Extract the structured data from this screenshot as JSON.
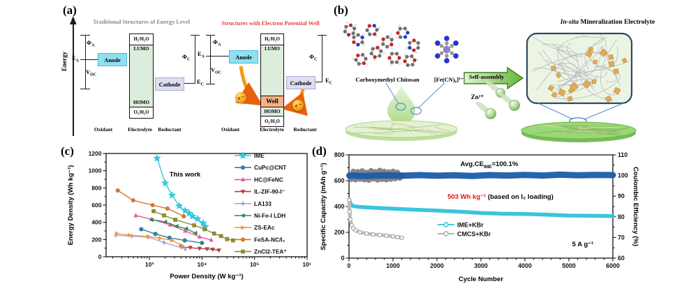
{
  "panel_a": {
    "label": "(a)",
    "energy_axis_label": "Energy",
    "sym": {
      "phi": "Φ",
      "sub_a": "A",
      "e": "E",
      "v": "V",
      "sub_oc": "OC",
      "sub_c": "C"
    },
    "left": {
      "title": "Traditional Structures of Energy Level",
      "anode": "Anode",
      "cathode": "Cathode",
      "h2": "H₂/H₂O",
      "lumo": "LUMO",
      "homo": "HOMO",
      "o2": "O₂/H₂O",
      "oxidant": "Oxidant",
      "electrolyte": "Electrolyte",
      "reductant": "Reductant"
    },
    "right": {
      "title": "Structures with  Electron Potential Well",
      "anode": "Anode",
      "cathode": "Cathode",
      "h2": "H₂/H₂O",
      "lumo": "LUMO",
      "homo": "HOMO",
      "o2": "O₂/H₂O",
      "well": "Well",
      "electron": "e⁻",
      "oxidant": "Oxidant",
      "electrolyte": "Electrolyte",
      "reductant": "Reductant"
    }
  },
  "panel_b": {
    "label": "(b)",
    "cmcs_label": "Carboxymethyl Chitosan",
    "fe_label": "[Fe(CN)₆]³⁻",
    "assembly_label": "Self-assembly",
    "zn_label": "Zn²⁺",
    "title_italic": "In-situ",
    "title_rest": " Mineralization Electrolyte"
  },
  "chart_data": [
    {
      "id": "c",
      "type": "scatter",
      "panel_label": "(c)",
      "xlabel": "Power Density (W kg⁻¹)",
      "ylabel": "Energy Density (Wh kg⁻¹)",
      "x_scale": "log",
      "xlim": [
        150,
        1000000
      ],
      "ylim": [
        0,
        1200
      ],
      "x_ticks": [
        {
          "v": 1000,
          "label": "10³"
        },
        {
          "v": 10000,
          "label": "10⁴"
        },
        {
          "v": 100000,
          "label": "10⁵"
        },
        {
          "v": 1000000,
          "label": "10⁶"
        }
      ],
      "y_ticks": [
        0,
        200,
        400,
        600,
        800,
        1000,
        1200
      ],
      "annotation": "This work",
      "legend_position": "right-inside",
      "series": [
        {
          "name": "IME",
          "marker": "star",
          "color": "#35C8DC",
          "points": [
            [
              1400,
              1145
            ],
            [
              2000,
              855
            ],
            [
              2700,
              715
            ],
            [
              3700,
              590
            ],
            [
              4800,
              535
            ],
            [
              5700,
              505
            ],
            [
              6600,
              470
            ],
            [
              8200,
              440
            ],
            [
              10500,
              390
            ],
            [
              11500,
              350
            ]
          ]
        },
        {
          "name": "CuPc@CNT",
          "marker": "circle",
          "color": "#2E7F9C",
          "points": [
            [
              700,
              320
            ],
            [
              1300,
              265
            ],
            [
              2400,
              220
            ],
            [
              4700,
              190
            ],
            [
              10000,
              160
            ]
          ]
        },
        {
          "name": "HC@FeNC",
          "marker": "triangle-up",
          "color": "#E75A9B",
          "points": [
            [
              550,
              480
            ],
            [
              1100,
              435
            ],
            [
              2500,
              370
            ],
            [
              4800,
              300
            ],
            [
              9000,
              230
            ],
            [
              15000,
              195
            ]
          ]
        },
        {
          "name": "IL-ZIF-90-I⁻",
          "marker": "triangle-down",
          "color": "#B04040",
          "points": [
            [
              4000,
              115
            ],
            [
              6000,
              105
            ],
            [
              9000,
              95
            ],
            [
              12500,
              90
            ],
            [
              16000,
              85
            ],
            [
              21000,
              75
            ]
          ]
        },
        {
          "name": "LA133",
          "marker": "diamond",
          "color": "#A8A6D6",
          "points": [
            [
              230,
              250
            ],
            [
              460,
              240
            ],
            [
              950,
              228
            ],
            [
              1900,
              165
            ],
            [
              4800,
              90
            ]
          ]
        },
        {
          "name": "Ni-Fe-I LDH",
          "marker": "triangle-left",
          "color": "#2E8B50",
          "points": [
            [
              1100,
              430
            ],
            [
              2000,
              405
            ],
            [
              3300,
              355
            ],
            [
              5000,
              325
            ],
            [
              7500,
              275
            ]
          ]
        },
        {
          "name": "ZS-EAc",
          "marker": "triangle-right",
          "color": "#F29544",
          "points": [
            [
              240,
              270
            ],
            [
              420,
              250
            ],
            [
              950,
              235
            ],
            [
              1600,
              215
            ],
            [
              2700,
              190
            ],
            [
              4200,
              130
            ]
          ]
        },
        {
          "name": "FeSA-NC/I₂",
          "marker": "circle",
          "color": "#D8752F",
          "points": [
            [
              250,
              770
            ],
            [
              490,
              655
            ],
            [
              1150,
              600
            ],
            [
              2200,
              560
            ],
            [
              4500,
              470
            ]
          ]
        },
        {
          "name": "ZnCl2-TEA⁺",
          "marker": "square",
          "color": "#8E8C2E",
          "points": [
            [
              1200,
              530
            ],
            [
              1900,
              480
            ],
            [
              3100,
              430
            ],
            [
              7100,
              365
            ],
            [
              11200,
              320
            ],
            [
              17000,
              270
            ],
            [
              23000,
              240
            ],
            [
              30000,
              205
            ],
            [
              39000,
              190
            ]
          ]
        }
      ]
    },
    {
      "id": "d",
      "type": "line",
      "panel_label": "(d)",
      "xlabel": "Cycle Number",
      "ylabel_left": "Specific Capacity (mAh g⁻¹)",
      "ylabel_right": "Coulombic Efficiency (%)",
      "xlim": [
        0,
        6000
      ],
      "x_ticks": [
        0,
        1000,
        2000,
        3000,
        4000,
        5000,
        6000
      ],
      "ylim_left": [
        0,
        800
      ],
      "y_ticks_left": [
        0,
        200,
        400,
        600,
        800
      ],
      "ylim_right": [
        60,
        110
      ],
      "y_ticks_right": [
        60,
        70,
        80,
        90,
        100,
        110
      ],
      "annotations": {
        "avg_ce_pre": "Avg.CE",
        "avg_ce_sub": "IME",
        "avg_ce_post": "=100.1%",
        "energy_red": "503 Wh kg⁻¹",
        "energy_black": " (based on I₂ loading)",
        "rate": "5 A g⁻¹"
      },
      "legend": [
        {
          "name": "IME+KBr",
          "color": "#2FC2D8",
          "marker": "circle-open"
        },
        {
          "name": "CMCS+KBr",
          "color": "#ABABAB",
          "marker": "circle-open"
        }
      ],
      "series": [
        {
          "name": "CMCS-CE",
          "axis": "right",
          "color": "#7E7E7E",
          "width": 8,
          "points": [
            [
              5,
              100
            ],
            [
              50,
              98.2
            ],
            [
              100,
              102
            ],
            [
              150,
              98
            ],
            [
              200,
              101.8
            ],
            [
              250,
              98.3
            ],
            [
              300,
              102.2
            ],
            [
              350,
              98
            ],
            [
              400,
              101.5
            ],
            [
              450,
              97.8
            ],
            [
              500,
              102.3
            ],
            [
              550,
              98.4
            ],
            [
              600,
              101.8
            ],
            [
              650,
              97.9
            ],
            [
              700,
              102.4
            ],
            [
              750,
              98.2
            ],
            [
              800,
              102
            ],
            [
              850,
              98
            ],
            [
              900,
              101.7
            ],
            [
              950,
              98.3
            ],
            [
              1000,
              102
            ],
            [
              1050,
              98.5
            ],
            [
              1100,
              101.5
            ],
            [
              1150,
              98.8
            ],
            [
              1200,
              100.2
            ]
          ]
        },
        {
          "name": "IME-CE",
          "axis": "right",
          "color": "#1A5CA8",
          "width": 9,
          "points": [
            [
              10,
              100
            ],
            [
              400,
              99.8
            ],
            [
              800,
              100.1
            ],
            [
              1200,
              99.9
            ],
            [
              1600,
              100.2
            ],
            [
              2000,
              99.9
            ],
            [
              2400,
              100.1
            ],
            [
              2800,
              99.8
            ],
            [
              3200,
              100.2
            ],
            [
              3600,
              100
            ],
            [
              4000,
              100.3
            ],
            [
              4400,
              100
            ],
            [
              4800,
              100.4
            ],
            [
              5200,
              100.1
            ],
            [
              5600,
              100.3
            ],
            [
              6000,
              100.2
            ]
          ]
        },
        {
          "name": "IME-capacity",
          "axis": "left",
          "color": "#2FC2D8",
          "width": 5.5,
          "points": [
            [
              5,
              455
            ],
            [
              30,
              425
            ],
            [
              80,
              405
            ],
            [
              200,
              398
            ],
            [
              400,
              393
            ],
            [
              700,
              388
            ],
            [
              1000,
              383
            ],
            [
              1500,
              375
            ],
            [
              2000,
              368
            ],
            [
              2500,
              360
            ],
            [
              3000,
              350
            ],
            [
              3500,
              344
            ],
            [
              4000,
              342
            ],
            [
              4500,
              337
            ],
            [
              5000,
              330
            ],
            [
              5500,
              328
            ],
            [
              6000,
              326
            ]
          ]
        },
        {
          "name": "CMCS-capacity",
          "axis": "left",
          "color": "#BDBDBD",
          "width": 5,
          "marker": "circle-open",
          "points": [
            [
              5,
              450
            ],
            [
              15,
              360
            ],
            [
              30,
              300
            ],
            [
              60,
              255
            ],
            [
              100,
              230
            ],
            [
              150,
              215
            ],
            [
              250,
              200
            ],
            [
              400,
              190
            ],
            [
              550,
              183
            ],
            [
              700,
              180
            ],
            [
              850,
              175
            ],
            [
              1000,
              168
            ],
            [
              1100,
              163
            ],
            [
              1200,
              158
            ]
          ]
        }
      ]
    }
  ]
}
